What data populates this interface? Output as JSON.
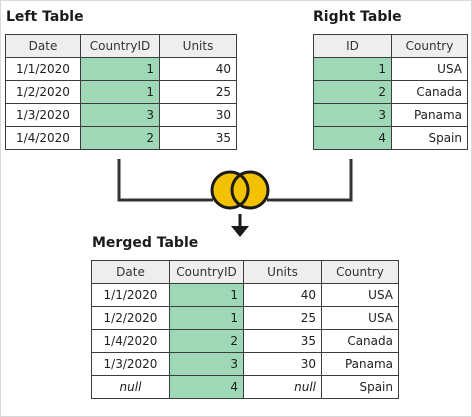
{
  "left_table": {
    "title": "Left Table",
    "headers": [
      "Date",
      "CountryID",
      "Units"
    ],
    "rows": [
      [
        "1/1/2020",
        "1",
        "40"
      ],
      [
        "1/2/2020",
        "1",
        "25"
      ],
      [
        "1/3/2020",
        "3",
        "30"
      ],
      [
        "1/4/2020",
        "2",
        "35"
      ]
    ]
  },
  "right_table": {
    "title": "Right Table",
    "headers": [
      "ID",
      "Country"
    ],
    "rows": [
      [
        "1",
        "USA"
      ],
      [
        "2",
        "Canada"
      ],
      [
        "3",
        "Panama"
      ],
      [
        "4",
        "Spain"
      ]
    ]
  },
  "merged_table": {
    "title": "Merged Table",
    "headers": [
      "Date",
      "CountryID",
      "Units",
      "Country"
    ],
    "rows": [
      [
        "1/1/2020",
        "1",
        "40",
        "USA"
      ],
      [
        "1/2/2020",
        "1",
        "25",
        "USA"
      ],
      [
        "1/4/2020",
        "2",
        "35",
        "Canada"
      ],
      [
        "1/3/2020",
        "3",
        "30",
        "Panama"
      ],
      [
        "null",
        "4",
        "null",
        "Spain"
      ]
    ]
  },
  "join_icon": "full-outer-join-venn-icon",
  "colors": {
    "key_column": "#9fd8b7",
    "header_background": "#eeeeee",
    "join_circles": "#f2c200",
    "connector": "#333333"
  }
}
